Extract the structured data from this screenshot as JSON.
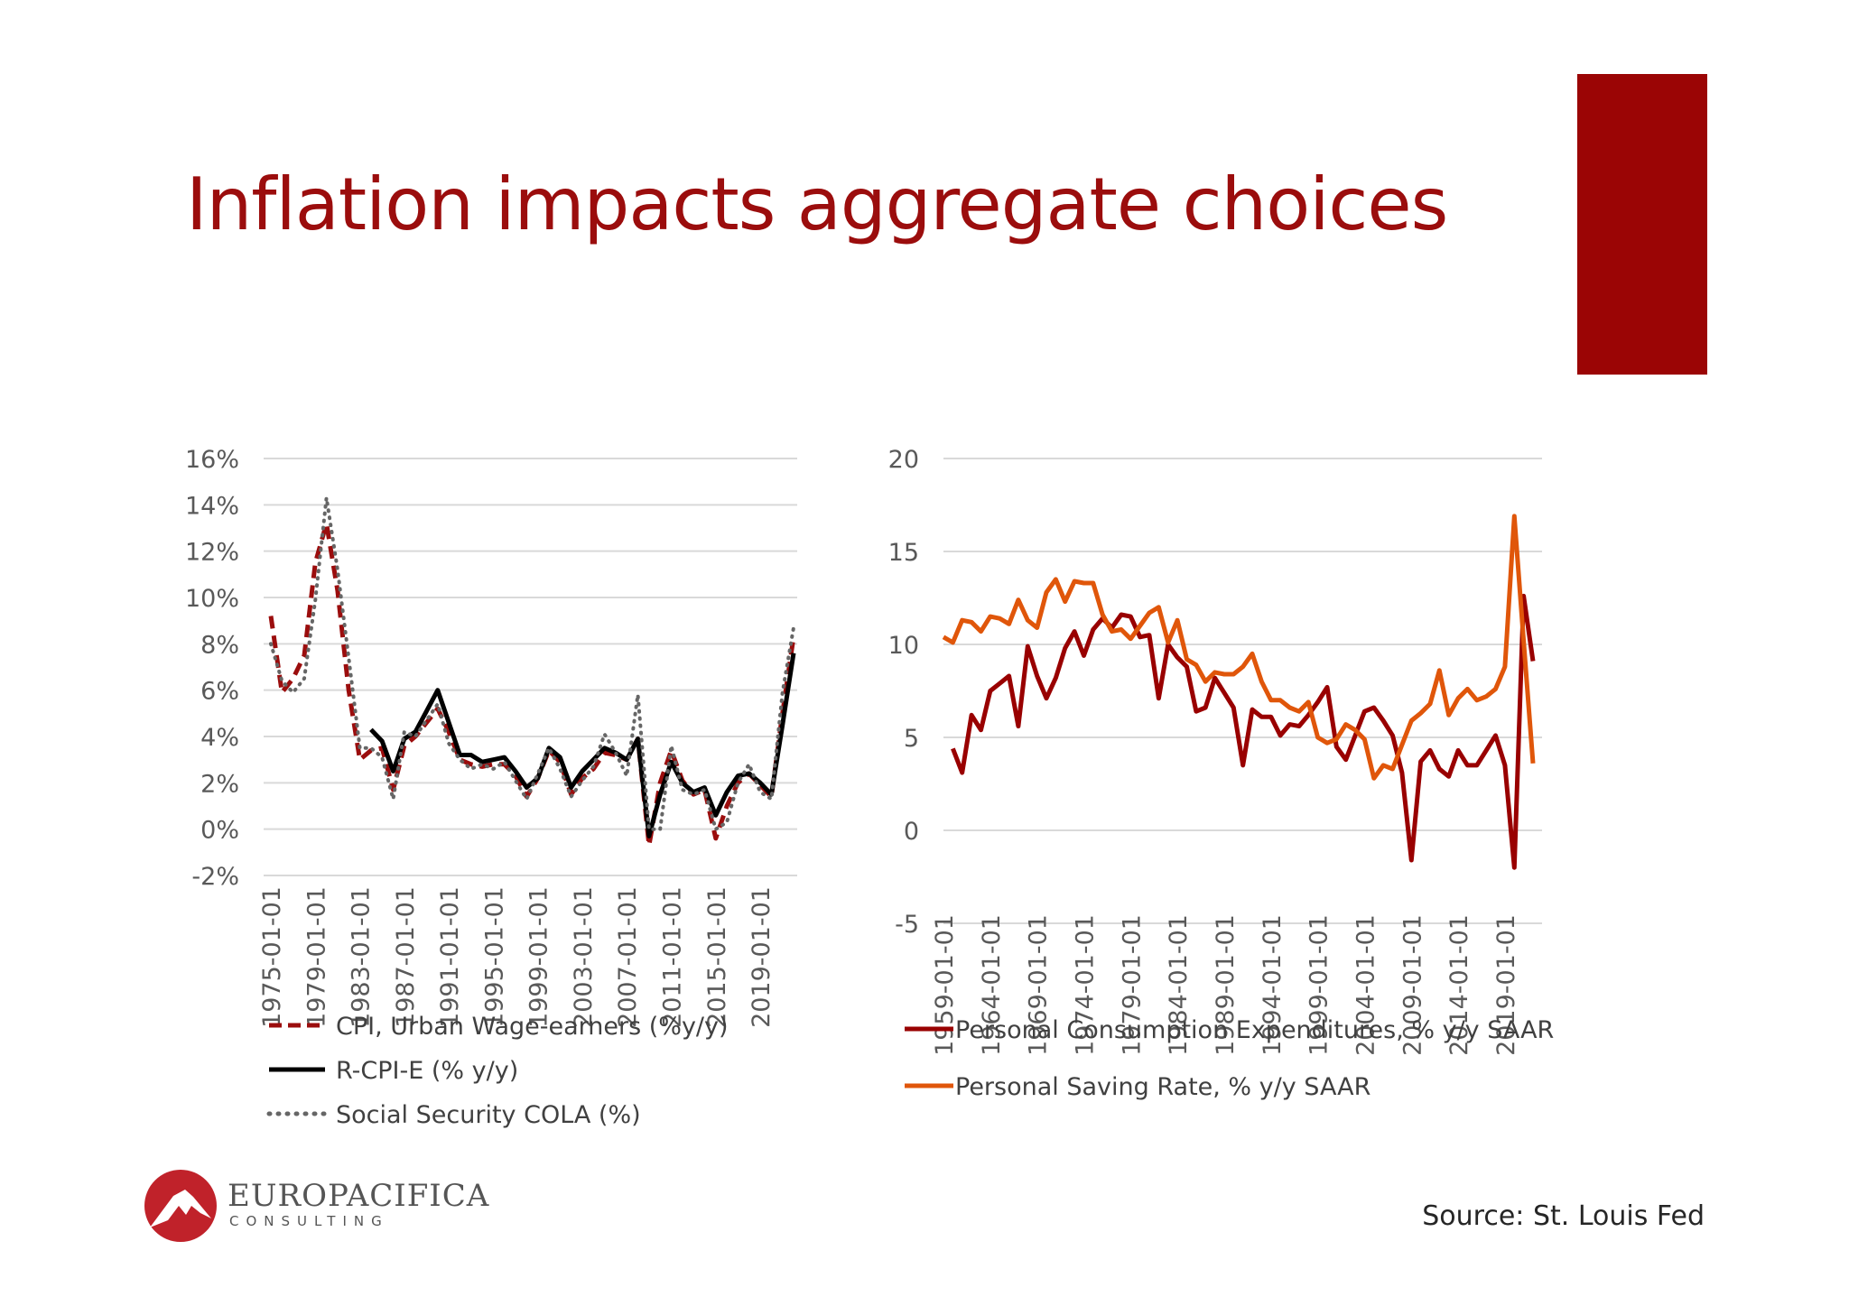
{
  "slide": {
    "title": "Inflation impacts aggregate choices",
    "source": "Source: St. Louis Fed",
    "logo": {
      "name": "EUROPACIFICA",
      "sub": "CONSULTING"
    },
    "colors": {
      "title": "#9b0d0d",
      "accent_bar": "#9b0505",
      "logo": "#c0222a"
    }
  },
  "chart_data": [
    {
      "type": "line",
      "title": "",
      "xlabel": "",
      "ylabel": "",
      "ylim": [
        -2,
        16
      ],
      "y_ticks": [
        "16%",
        "14%",
        "12%",
        "10%",
        "8%",
        "6%",
        "4%",
        "2%",
        "0%",
        "-2%"
      ],
      "y_tick_values": [
        16,
        14,
        12,
        10,
        8,
        6,
        4,
        2,
        0,
        -2
      ],
      "x_ticks": [
        "1975-01-01",
        "1979-01-01",
        "1983-01-01",
        "1987-01-01",
        "1991-01-01",
        "1995-01-01",
        "1999-01-01",
        "2003-01-01",
        "2007-01-01",
        "2011-01-01",
        "2015-01-01",
        "2019-01-01"
      ],
      "x_tick_years": [
        1975,
        1979,
        1983,
        1987,
        1991,
        1995,
        1999,
        2003,
        2007,
        2011,
        2015,
        2019
      ],
      "xlim": [
        1975,
        2022
      ],
      "grid": true,
      "legend": "bottom",
      "series": [
        {
          "name": "CPI, Urban Wage-earners (%y/y)",
          "color": "#9b0d0d",
          "style": "dashed",
          "start": 1975,
          "values": [
            9.2,
            5.9,
            6.5,
            7.5,
            11.5,
            13.2,
            10.3,
            6.0,
            3.0,
            3.4,
            3.5,
            1.7,
            3.6,
            4.0,
            4.6,
            5.2,
            4.2,
            3.0,
            2.8,
            2.7,
            2.8,
            2.8,
            2.3,
            1.4,
            2.2,
            3.4,
            2.9,
            1.5,
            2.2,
            2.6,
            3.3,
            3.2,
            3.0,
            3.9,
            -0.7,
            2.0,
            3.4,
            2.1,
            1.5,
            1.7,
            -0.4,
            1.0,
            2.0,
            2.4,
            1.9,
            1.4,
            5.0,
            8.3
          ]
        },
        {
          "name": "R-CPI-E (% y/y)",
          "color": "#000000",
          "style": "solid",
          "start": 1984,
          "values": [
            4.3,
            3.8,
            2.5,
            3.9,
            4.2,
            5.1,
            6.0,
            4.6,
            3.2,
            3.2,
            2.9,
            3.0,
            3.1,
            2.5,
            1.8,
            2.2,
            3.5,
            3.1,
            1.8,
            2.5,
            3.0,
            3.5,
            3.3,
            3.0,
            3.9,
            -0.3,
            1.5,
            2.9,
            2.0,
            1.6,
            1.8,
            0.6,
            1.6,
            2.3,
            2.4,
            2.0,
            1.5,
            4.5,
            7.6
          ]
        },
        {
          "name": "Social Security COLA (%)",
          "color": "#666666",
          "style": "dotted",
          "start": 1975,
          "values": [
            8.0,
            6.4,
            5.9,
            6.5,
            9.9,
            14.3,
            11.2,
            7.4,
            3.5,
            3.5,
            3.1,
            1.3,
            4.2,
            4.0,
            4.7,
            5.4,
            3.7,
            3.0,
            2.6,
            2.8,
            2.6,
            2.9,
            2.1,
            1.3,
            2.4,
            3.5,
            2.6,
            1.4,
            2.1,
            2.7,
            4.1,
            3.3,
            2.3,
            5.8,
            0.0,
            0.0,
            3.6,
            1.7,
            1.5,
            1.7,
            0.0,
            0.3,
            2.0,
            2.8,
            1.6,
            1.3,
            5.9,
            8.7
          ]
        }
      ]
    },
    {
      "type": "line",
      "title": "",
      "xlabel": "",
      "ylabel": "",
      "ylim": [
        -5,
        20
      ],
      "y_ticks": [
        "20",
        "15",
        "10",
        "5",
        "0",
        "-5"
      ],
      "y_tick_values": [
        20,
        15,
        10,
        5,
        0,
        -5
      ],
      "x_ticks": [
        "1959-01-01",
        "1964-01-01",
        "1969-01-01",
        "1974-01-01",
        "1979-01-01",
        "1984-01-01",
        "1989-01-01",
        "1994-01-01",
        "1999-01-01",
        "2004-01-01",
        "2009-01-01",
        "2014-01-01",
        "2019-01-01"
      ],
      "x_tick_years": [
        1959,
        1964,
        1969,
        1974,
        1979,
        1984,
        1989,
        1994,
        1999,
        2004,
        2009,
        2014,
        2019
      ],
      "xlim": [
        1959,
        2022
      ],
      "grid": true,
      "legend": "bottom",
      "series": [
        {
          "name": "Personal Consumption Expenditures, % y/y SAAR",
          "color": "#990000",
          "style": "solid",
          "start": 1960,
          "values": [
            4.4,
            3.1,
            6.2,
            5.4,
            7.5,
            7.9,
            8.3,
            5.6,
            9.9,
            8.3,
            7.1,
            8.2,
            9.8,
            10.7,
            9.4,
            10.8,
            11.4,
            10.9,
            11.6,
            11.5,
            10.4,
            10.5,
            7.1,
            10.0,
            9.3,
            8.8,
            6.4,
            6.6,
            8.2,
            7.4,
            6.6,
            3.5,
            6.5,
            6.1,
            6.1,
            5.1,
            5.7,
            5.6,
            6.2,
            6.9,
            7.7,
            4.5,
            3.8,
            5.1,
            6.4,
            6.6,
            5.9,
            5.1,
            3.1,
            -1.6,
            3.7,
            4.3,
            3.3,
            2.9,
            4.3,
            3.5,
            3.5,
            4.3,
            5.1,
            3.5,
            -2.0,
            12.6,
            9.1
          ]
        },
        {
          "name": "Personal Saving Rate, % y/y SAAR",
          "color": "#e0560a",
          "style": "solid",
          "start": 1959,
          "values": [
            10.4,
            10.1,
            11.3,
            11.2,
            10.7,
            11.5,
            11.4,
            11.1,
            12.4,
            11.3,
            10.9,
            12.8,
            13.5,
            12.3,
            13.4,
            13.3,
            13.3,
            11.6,
            10.7,
            10.8,
            10.3,
            11.0,
            11.7,
            12.0,
            10.1,
            11.3,
            9.2,
            8.9,
            8.0,
            8.5,
            8.4,
            8.4,
            8.8,
            9.5,
            8.0,
            7.0,
            7.0,
            6.6,
            6.4,
            6.9,
            5.0,
            4.7,
            4.9,
            5.7,
            5.4,
            4.9,
            2.8,
            3.5,
            3.3,
            4.6,
            5.9,
            6.3,
            6.8,
            8.6,
            6.2,
            7.1,
            7.6,
            7.0,
            7.2,
            7.6,
            8.8,
            16.9,
            10.2,
            3.6
          ]
        }
      ]
    }
  ]
}
